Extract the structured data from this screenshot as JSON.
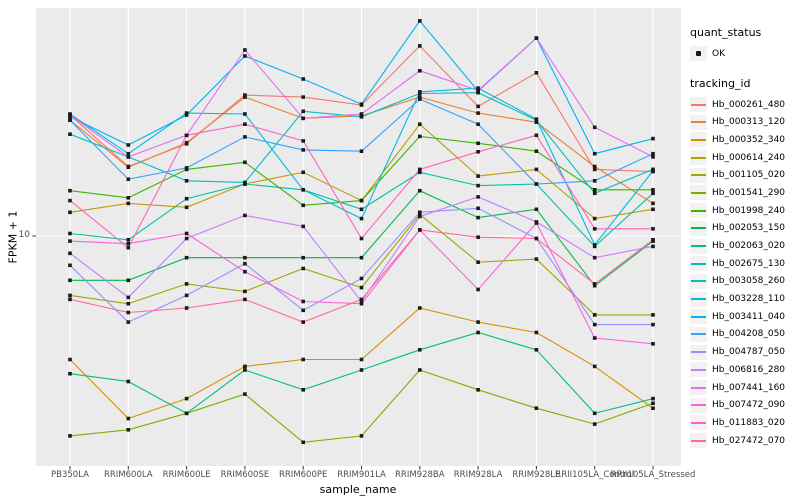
{
  "chart_data": {
    "type": "line",
    "title": "",
    "xlabel": "sample_name",
    "ylabel": "FPKM + 1",
    "y_scale": "log10",
    "y_ticks": [
      10
    ],
    "y_tick_label": "10",
    "ylim": [
      1.8,
      60
    ],
    "grid": "on",
    "legend_position": "right",
    "categories": [
      "PB350LA",
      "RRIM600LA",
      "RRIM600LE",
      "RRIM600SE",
      "RRIM600PE",
      "RRIM901LA",
      "RRIM928BA",
      "RRIM928LA",
      "RRIM928LE",
      "RRII105LA_Control",
      "RRII105LA_Stressed"
    ],
    "legend": {
      "quant_status_title": "quant_status",
      "quant_status_items": [
        {
          "label": "OK",
          "marker": "black-square-point"
        }
      ],
      "tracking_title": "tracking_id"
    },
    "series": [
      {
        "name": "Hb_000261_480",
        "color": "#F8766D",
        "values": [
          26.5,
          17.5,
          21.0,
          31.1,
          30.6,
          28.7,
          46.2,
          28.4,
          37.2,
          17.1,
          16.8
        ]
      },
      {
        "name": "Hb_000313_120",
        "color": "#EA8331",
        "values": [
          25.4,
          17.4,
          21.2,
          30.6,
          25.8,
          26.3,
          30.6,
          26.9,
          25.0,
          17.5,
          13.0
        ]
      },
      {
        "name": "Hb_000352_340",
        "color": "#D89000",
        "values": [
          3.7,
          2.3,
          2.7,
          3.5,
          3.7,
          3.7,
          5.6,
          5.0,
          4.6,
          3.5,
          2.5
        ]
      },
      {
        "name": "Hb_000614_240",
        "color": "#C09B00",
        "values": [
          12.1,
          13.0,
          12.6,
          15.2,
          16.7,
          13.3,
          24.6,
          16.2,
          17.1,
          11.5,
          12.4
        ]
      },
      {
        "name": "Hb_001105_020",
        "color": "#A3A500",
        "values": [
          6.2,
          5.8,
          6.8,
          6.4,
          7.7,
          6.6,
          11.9,
          8.1,
          8.3,
          5.3,
          5.3
        ]
      },
      {
        "name": "Hb_001541_290",
        "color": "#7CAE00",
        "values": [
          2.0,
          2.1,
          2.4,
          2.8,
          1.9,
          2.0,
          3.4,
          2.9,
          2.5,
          2.2,
          2.6
        ]
      },
      {
        "name": "Hb_001998_240",
        "color": "#39B600",
        "values": [
          14.4,
          13.6,
          17.1,
          18.1,
          12.8,
          13.3,
          22.3,
          21.1,
          19.8,
          14.5,
          14.5
        ]
      },
      {
        "name": "Hb_002053_150",
        "color": "#00BB4E",
        "values": [
          7.0,
          7.0,
          8.4,
          8.4,
          8.4,
          8.4,
          14.4,
          11.6,
          12.4,
          6.7,
          9.6
        ]
      },
      {
        "name": "Hb_002063_020",
        "color": "#00BF7D",
        "values": [
          3.3,
          3.1,
          2.4,
          3.4,
          2.9,
          3.4,
          4.0,
          4.6,
          4.0,
          2.4,
          2.7
        ]
      },
      {
        "name": "Hb_002675_130",
        "color": "#00C1A3",
        "values": [
          10.2,
          9.7,
          13.5,
          15.2,
          14.5,
          12.4,
          16.7,
          15.0,
          15.2,
          9.2,
          14.1
        ]
      },
      {
        "name": "Hb_003058_260",
        "color": "#00BFC4",
        "values": [
          22.7,
          18.9,
          15.6,
          15.4,
          27.3,
          26.1,
          31.5,
          31.7,
          25.4,
          14.1,
          17.1
        ]
      },
      {
        "name": "Hb_003228_110",
        "color": "#00BAE0",
        "values": [
          26.7,
          19.4,
          26.9,
          26.7,
          14.5,
          11.5,
          31.9,
          32.9,
          25.6,
          9.3,
          16.9
        ]
      },
      {
        "name": "Hb_003411_040",
        "color": "#00B0F6",
        "values": [
          26.1,
          20.8,
          26.5,
          42.6,
          35.4,
          28.9,
          56.5,
          32.1,
          49.2,
          19.4,
          21.9
        ]
      },
      {
        "name": "Hb_004208_050",
        "color": "#35A2FF",
        "values": [
          25.4,
          15.8,
          17.3,
          22.2,
          20.0,
          19.8,
          30.1,
          24.6,
          15.2,
          15.6,
          19.4
        ]
      },
      {
        "name": "Hb_004787_050",
        "color": "#9590FF",
        "values": [
          7.9,
          5.0,
          6.2,
          8.0,
          5.5,
          7.1,
          12.1,
          12.5,
          9.8,
          4.9,
          4.9
        ]
      },
      {
        "name": "Hb_006816_280",
        "color": "#C77CFF",
        "values": [
          8.7,
          6.1,
          9.8,
          11.8,
          10.8,
          5.9,
          11.7,
          13.7,
          11.2,
          8.4,
          9.2
        ]
      },
      {
        "name": "Hb_007441_160",
        "color": "#E76BF3",
        "values": [
          26.5,
          18.9,
          22.5,
          44.7,
          25.8,
          26.7,
          37.8,
          32.3,
          49.2,
          24.0,
          18.9
        ]
      },
      {
        "name": "Hb_007472_090",
        "color": "#FA62DB",
        "values": [
          9.6,
          9.4,
          10.2,
          7.5,
          5.9,
          5.8,
          10.5,
          6.5,
          11.1,
          4.4,
          4.2
        ]
      },
      {
        "name": "Hb_011883_020",
        "color": "#FF62BC",
        "values": [
          13.3,
          9.1,
          22.5,
          24.6,
          21.5,
          9.8,
          17.1,
          19.7,
          22.5,
          10.6,
          10.6
        ]
      },
      {
        "name": "Hb_027472_070",
        "color": "#FF6A98",
        "values": [
          6.0,
          5.4,
          5.6,
          6.0,
          5.0,
          6.0,
          10.5,
          9.9,
          9.8,
          6.8,
          9.7
        ]
      }
    ],
    "layout": {
      "panel_bg": "#EBEBEB",
      "grid_color": "#FFFFFF",
      "legend_key_bg": "#F2F2F2",
      "marker_color": "#1A1A1A",
      "tick_text_color": "#4D4D4D",
      "tick_mark_color": "#333333"
    }
  }
}
